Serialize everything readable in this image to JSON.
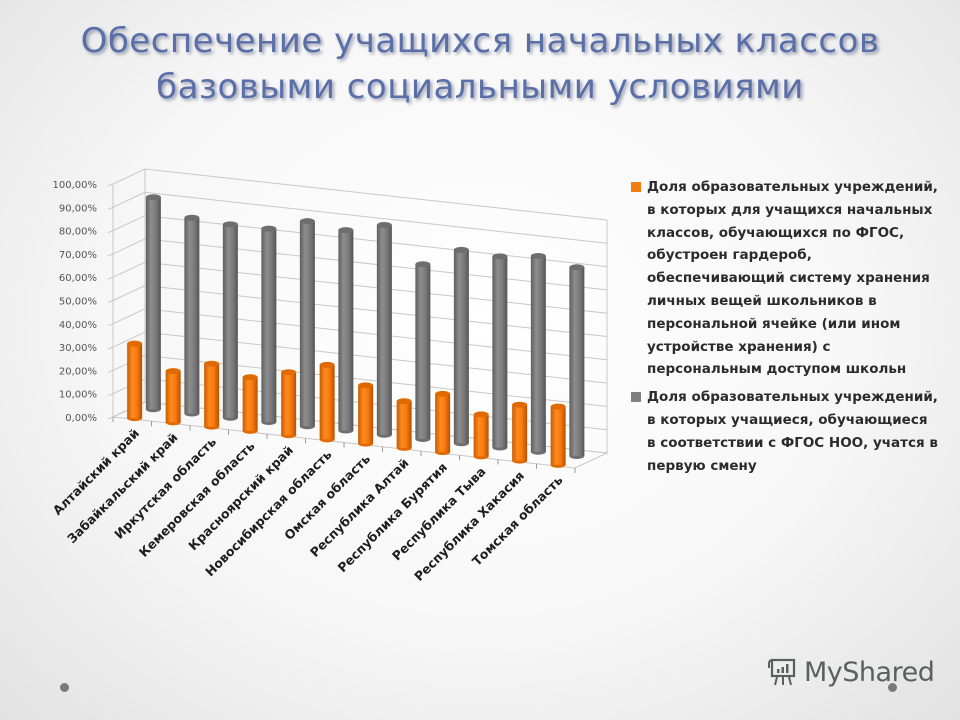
{
  "slide": {
    "title_line1": "Обеспечение учащихся начальных классов",
    "title_line2": "базовыми социальными условиями",
    "watermark": "MyShared"
  },
  "colors": {
    "series1": "#f07c12",
    "series2": "#7f7f7f",
    "title": "#5a6ea8",
    "grid": "#c8c8c8"
  },
  "legend": {
    "items": [
      {
        "label": "Доля образовательных учреждений, в которых для учащихся начальных классов, обучающихся по ФГОС, обустроен гардероб, обеспечивающий систему хранения личных вещей школьников в персональной ячейке (или ином устройстве хранения) с персональным доступом школьн",
        "color": "#f07c12"
      },
      {
        "label": "Доля образовательных учреждений, в которых учащиеся, обучающиеся в соответствии с ФГОС НОО, учатся в первую смену",
        "color": "#7f7f7f"
      }
    ]
  },
  "chart_data": {
    "type": "bar",
    "subtype": "3d-cylinder",
    "title": "Обеспечение учащихся начальных классов базовыми социальными условиями",
    "xlabel": "",
    "ylabel": "",
    "ylim": [
      0,
      100
    ],
    "y_ticks": [
      "0,00%",
      "10,00%",
      "20,00%",
      "30,00%",
      "40,00%",
      "50,00%",
      "60,00%",
      "70,00%",
      "80,00%",
      "90,00%",
      "100,00%"
    ],
    "grid": true,
    "legend_position": "right",
    "categories": [
      "Алтайский край",
      "Забайкальский край",
      "Иркутская область",
      "Кемеровская область",
      "Красноярский край",
      "Новосибирская область",
      "Омская область",
      "Республика Алтай",
      "Республика Бурятия",
      "Республика Тыва",
      "Республика Хакасия",
      "Томская область"
    ],
    "series": [
      {
        "name": "Доля образовательных учреждений, в которых для учащихся начальных классов, обучающихся по ФГОС, обустроен гардероб, обеспечивающий систему хранения личных вещей школьников в персональной ячейке (или ином устройстве хранения) с персональным доступом школьн",
        "color": "#f07c12",
        "values": [
          32,
          22,
          27,
          23,
          27,
          32,
          25,
          20,
          25,
          18,
          24,
          25
        ]
      },
      {
        "name": "Доля образовательных учреждений, в которых учащиеся, обучающиеся в соответствии с ФГОС НОО, учатся в первую смену",
        "color": "#7f7f7f",
        "values": [
          91,
          84,
          83,
          83,
          88,
          86,
          90,
          75,
          83,
          82,
          84,
          81
        ]
      }
    ]
  }
}
